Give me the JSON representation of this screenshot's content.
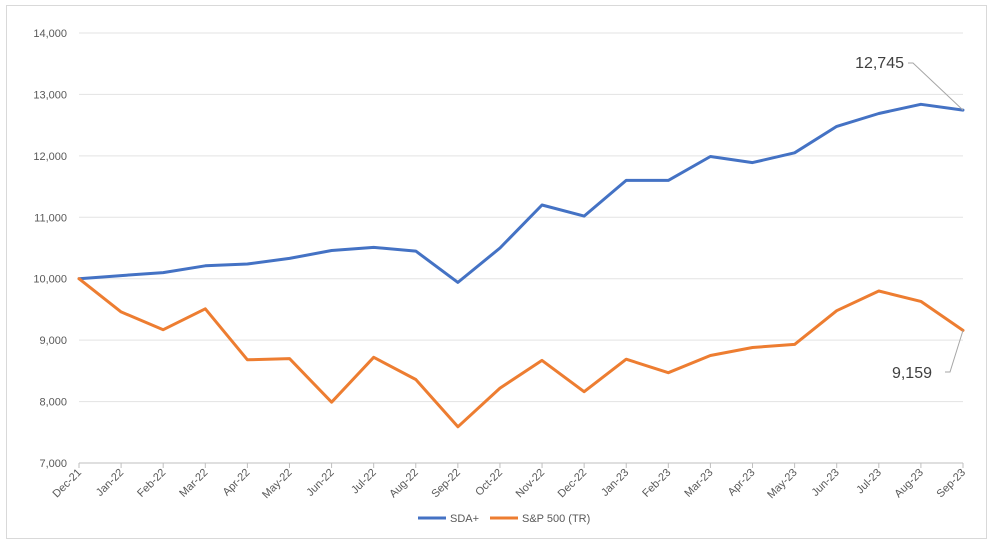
{
  "chart_data": {
    "type": "line",
    "categories": [
      "Dec-21",
      "Jan-22",
      "Feb-22",
      "Mar-22",
      "Apr-22",
      "May-22",
      "Jun-22",
      "Jul-22",
      "Aug-22",
      "Sep-22",
      "Oct-22",
      "Nov-22",
      "Dec-22",
      "Jan-23",
      "Feb-23",
      "Mar-23",
      "Apr-23",
      "May-23",
      "Jun-23",
      "Jul-23",
      "Aug-23",
      "Sep-23"
    ],
    "series": [
      {
        "name": "SDA+",
        "color": "#4472c4",
        "values": [
          10000,
          10050,
          10100,
          10210,
          10240,
          10330,
          10460,
          10510,
          10450,
          9940,
          10500,
          11200,
          11020,
          11600,
          11600,
          11990,
          11890,
          12050,
          12480,
          12690,
          12840,
          12745
        ]
      },
      {
        "name": "S&P 500 (TR)",
        "color": "#ed7d31",
        "values": [
          10000,
          9460,
          9170,
          9510,
          8680,
          8700,
          7990,
          8720,
          8360,
          7590,
          8220,
          8670,
          8160,
          8690,
          8470,
          8750,
          8880,
          8930,
          9480,
          9800,
          9630,
          9159
        ]
      }
    ],
    "ylim": [
      7000,
      14000
    ],
    "yticks": [
      "7,000",
      "8,000",
      "9,000",
      "10,000",
      "11,000",
      "12,000",
      "13,000",
      "14,000"
    ],
    "grid": true,
    "legend_position": "bottom",
    "annotations": [
      {
        "series": 0,
        "text": "12,745"
      },
      {
        "series": 1,
        "text": "9,159"
      }
    ]
  }
}
